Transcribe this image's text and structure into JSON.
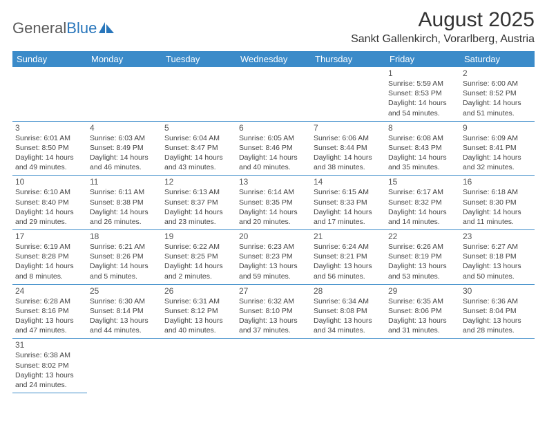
{
  "logo": {
    "general": "General",
    "blue": "Blue"
  },
  "header": {
    "month_title": "August 2025",
    "location": "Sankt Gallenkirch, Vorarlberg, Austria"
  },
  "colors": {
    "header_bg": "#3b8bc9",
    "header_text": "#ffffff",
    "border": "#3b8bc9",
    "text": "#444444",
    "logo_gray": "#5a5a5a",
    "logo_blue": "#2976bb",
    "background": "#ffffff"
  },
  "weekdays": [
    "Sunday",
    "Monday",
    "Tuesday",
    "Wednesday",
    "Thursday",
    "Friday",
    "Saturday"
  ],
  "grid": [
    [
      null,
      null,
      null,
      null,
      null,
      {
        "day": "1",
        "sunrise": "Sunrise: 5:59 AM",
        "sunset": "Sunset: 8:53 PM",
        "daylight": "Daylight: 14 hours and 54 minutes."
      },
      {
        "day": "2",
        "sunrise": "Sunrise: 6:00 AM",
        "sunset": "Sunset: 8:52 PM",
        "daylight": "Daylight: 14 hours and 51 minutes."
      }
    ],
    [
      {
        "day": "3",
        "sunrise": "Sunrise: 6:01 AM",
        "sunset": "Sunset: 8:50 PM",
        "daylight": "Daylight: 14 hours and 49 minutes."
      },
      {
        "day": "4",
        "sunrise": "Sunrise: 6:03 AM",
        "sunset": "Sunset: 8:49 PM",
        "daylight": "Daylight: 14 hours and 46 minutes."
      },
      {
        "day": "5",
        "sunrise": "Sunrise: 6:04 AM",
        "sunset": "Sunset: 8:47 PM",
        "daylight": "Daylight: 14 hours and 43 minutes."
      },
      {
        "day": "6",
        "sunrise": "Sunrise: 6:05 AM",
        "sunset": "Sunset: 8:46 PM",
        "daylight": "Daylight: 14 hours and 40 minutes."
      },
      {
        "day": "7",
        "sunrise": "Sunrise: 6:06 AM",
        "sunset": "Sunset: 8:44 PM",
        "daylight": "Daylight: 14 hours and 38 minutes."
      },
      {
        "day": "8",
        "sunrise": "Sunrise: 6:08 AM",
        "sunset": "Sunset: 8:43 PM",
        "daylight": "Daylight: 14 hours and 35 minutes."
      },
      {
        "day": "9",
        "sunrise": "Sunrise: 6:09 AM",
        "sunset": "Sunset: 8:41 PM",
        "daylight": "Daylight: 14 hours and 32 minutes."
      }
    ],
    [
      {
        "day": "10",
        "sunrise": "Sunrise: 6:10 AM",
        "sunset": "Sunset: 8:40 PM",
        "daylight": "Daylight: 14 hours and 29 minutes."
      },
      {
        "day": "11",
        "sunrise": "Sunrise: 6:11 AM",
        "sunset": "Sunset: 8:38 PM",
        "daylight": "Daylight: 14 hours and 26 minutes."
      },
      {
        "day": "12",
        "sunrise": "Sunrise: 6:13 AM",
        "sunset": "Sunset: 8:37 PM",
        "daylight": "Daylight: 14 hours and 23 minutes."
      },
      {
        "day": "13",
        "sunrise": "Sunrise: 6:14 AM",
        "sunset": "Sunset: 8:35 PM",
        "daylight": "Daylight: 14 hours and 20 minutes."
      },
      {
        "day": "14",
        "sunrise": "Sunrise: 6:15 AM",
        "sunset": "Sunset: 8:33 PM",
        "daylight": "Daylight: 14 hours and 17 minutes."
      },
      {
        "day": "15",
        "sunrise": "Sunrise: 6:17 AM",
        "sunset": "Sunset: 8:32 PM",
        "daylight": "Daylight: 14 hours and 14 minutes."
      },
      {
        "day": "16",
        "sunrise": "Sunrise: 6:18 AM",
        "sunset": "Sunset: 8:30 PM",
        "daylight": "Daylight: 14 hours and 11 minutes."
      }
    ],
    [
      {
        "day": "17",
        "sunrise": "Sunrise: 6:19 AM",
        "sunset": "Sunset: 8:28 PM",
        "daylight": "Daylight: 14 hours and 8 minutes."
      },
      {
        "day": "18",
        "sunrise": "Sunrise: 6:21 AM",
        "sunset": "Sunset: 8:26 PM",
        "daylight": "Daylight: 14 hours and 5 minutes."
      },
      {
        "day": "19",
        "sunrise": "Sunrise: 6:22 AM",
        "sunset": "Sunset: 8:25 PM",
        "daylight": "Daylight: 14 hours and 2 minutes."
      },
      {
        "day": "20",
        "sunrise": "Sunrise: 6:23 AM",
        "sunset": "Sunset: 8:23 PM",
        "daylight": "Daylight: 13 hours and 59 minutes."
      },
      {
        "day": "21",
        "sunrise": "Sunrise: 6:24 AM",
        "sunset": "Sunset: 8:21 PM",
        "daylight": "Daylight: 13 hours and 56 minutes."
      },
      {
        "day": "22",
        "sunrise": "Sunrise: 6:26 AM",
        "sunset": "Sunset: 8:19 PM",
        "daylight": "Daylight: 13 hours and 53 minutes."
      },
      {
        "day": "23",
        "sunrise": "Sunrise: 6:27 AM",
        "sunset": "Sunset: 8:18 PM",
        "daylight": "Daylight: 13 hours and 50 minutes."
      }
    ],
    [
      {
        "day": "24",
        "sunrise": "Sunrise: 6:28 AM",
        "sunset": "Sunset: 8:16 PM",
        "daylight": "Daylight: 13 hours and 47 minutes."
      },
      {
        "day": "25",
        "sunrise": "Sunrise: 6:30 AM",
        "sunset": "Sunset: 8:14 PM",
        "daylight": "Daylight: 13 hours and 44 minutes."
      },
      {
        "day": "26",
        "sunrise": "Sunrise: 6:31 AM",
        "sunset": "Sunset: 8:12 PM",
        "daylight": "Daylight: 13 hours and 40 minutes."
      },
      {
        "day": "27",
        "sunrise": "Sunrise: 6:32 AM",
        "sunset": "Sunset: 8:10 PM",
        "daylight": "Daylight: 13 hours and 37 minutes."
      },
      {
        "day": "28",
        "sunrise": "Sunrise: 6:34 AM",
        "sunset": "Sunset: 8:08 PM",
        "daylight": "Daylight: 13 hours and 34 minutes."
      },
      {
        "day": "29",
        "sunrise": "Sunrise: 6:35 AM",
        "sunset": "Sunset: 8:06 PM",
        "daylight": "Daylight: 13 hours and 31 minutes."
      },
      {
        "day": "30",
        "sunrise": "Sunrise: 6:36 AM",
        "sunset": "Sunset: 8:04 PM",
        "daylight": "Daylight: 13 hours and 28 minutes."
      }
    ],
    [
      {
        "day": "31",
        "sunrise": "Sunrise: 6:38 AM",
        "sunset": "Sunset: 8:02 PM",
        "daylight": "Daylight: 13 hours and 24 minutes."
      },
      null,
      null,
      null,
      null,
      null,
      null
    ]
  ]
}
